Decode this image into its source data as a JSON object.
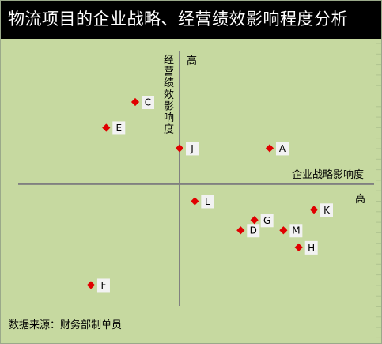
{
  "title": "物流项目的企业战略、经营绩效影响程度分析",
  "source": "数据来源：财务部制单员",
  "colors": {
    "background": "#c6d9a0",
    "title_bar": "#000000",
    "marker": "#e00000",
    "label_box": "#f2f2f2",
    "axis": "#808080"
  },
  "chart_data": {
    "type": "scatter",
    "title": "物流项目的企业战略、经营绩效影响程度分析",
    "xlabel": "企业战略影响度",
    "ylabel": "经营绩效影响度",
    "x_high_label": "高",
    "y_high_label": "高",
    "xlim": [
      -11.7,
      13.2
    ],
    "ylim": [
      -9.3,
      8.5
    ],
    "grid": false,
    "legend": "none",
    "points": [
      {
        "label": "A",
        "x": 5.9,
        "y": 2.1
      },
      {
        "label": "C",
        "x": -2.9,
        "y": 4.8
      },
      {
        "label": "D",
        "x": 4.0,
        "y": -2.7
      },
      {
        "label": "E",
        "x": -4.8,
        "y": 3.3
      },
      {
        "label": "F",
        "x": -5.8,
        "y": -5.9
      },
      {
        "label": "G",
        "x": 4.9,
        "y": -2.1
      },
      {
        "label": "H",
        "x": 7.8,
        "y": -3.7
      },
      {
        "label": "J",
        "x": 0.0,
        "y": 2.1
      },
      {
        "label": "K",
        "x": 8.8,
        "y": -1.5
      },
      {
        "label": "L",
        "x": 1.0,
        "y": -1.0
      },
      {
        "label": "M",
        "x": 6.8,
        "y": -2.7
      }
    ]
  }
}
